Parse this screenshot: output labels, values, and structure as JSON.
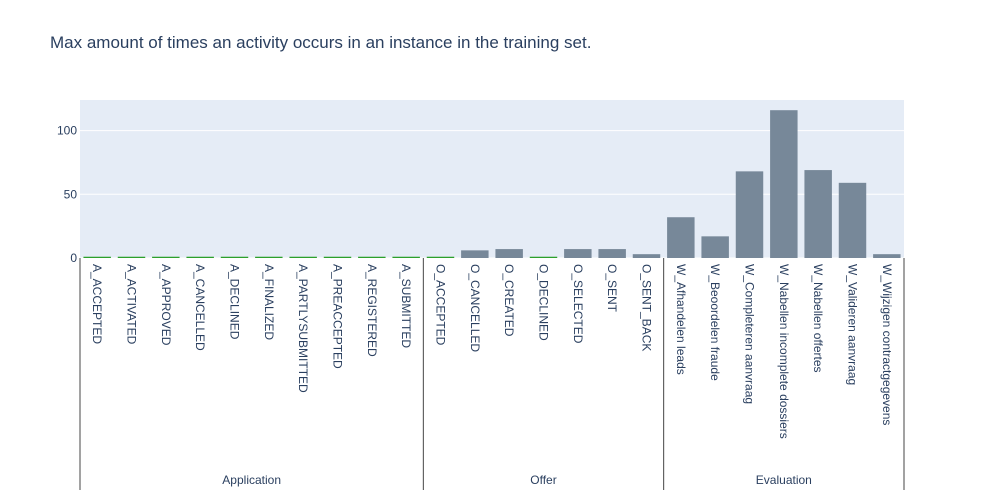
{
  "chart_data": {
    "type": "bar",
    "title": "Max amount of times an activity occurs in an instance in the training set.",
    "xlabel": "",
    "ylabel": "",
    "ylim": [
      0,
      124
    ],
    "yticks": [
      0,
      50,
      100
    ],
    "grid": true,
    "legend": "none",
    "colors": {
      "bar": "#778899",
      "zero_bar": "#2ca02c",
      "plot_bg": "#e5ecf6",
      "grid": "#ffffff",
      "text": "#2a3f5f"
    },
    "groups": [
      {
        "name": "Application",
        "categories": [
          "A_ACCEPTED",
          "A_ACTIVATED",
          "A_APPROVED",
          "A_CANCELLED",
          "A_DECLINED",
          "A_FINALIZED",
          "A_PARTLYSUBMITTED",
          "A_PREACCEPTED",
          "A_REGISTERED",
          "A_SUBMITTED"
        ],
        "values": [
          1,
          1,
          1,
          1,
          1,
          1,
          1,
          1,
          1,
          1
        ]
      },
      {
        "name": "Offer",
        "categories": [
          "O_ACCEPTED",
          "O_CANCELLED",
          "O_CREATED",
          "O_DECLINED",
          "O_SELECTED",
          "O_SENT",
          "O_SENT_BACK"
        ],
        "values": [
          1,
          6,
          7,
          1,
          7,
          7,
          3
        ]
      },
      {
        "name": "Evaluation",
        "categories": [
          "W_Afhandelen leads",
          "W_Beoordelen fraude",
          "W_Completeren aanvraag",
          "W_Nabellen incomplete dossiers",
          "W_Nabellen offertes",
          "W_Valideren aanvraag",
          "W_Wijzigen contractgegevens"
        ],
        "values": [
          32,
          17,
          68,
          116,
          69,
          59,
          3
        ]
      }
    ]
  }
}
